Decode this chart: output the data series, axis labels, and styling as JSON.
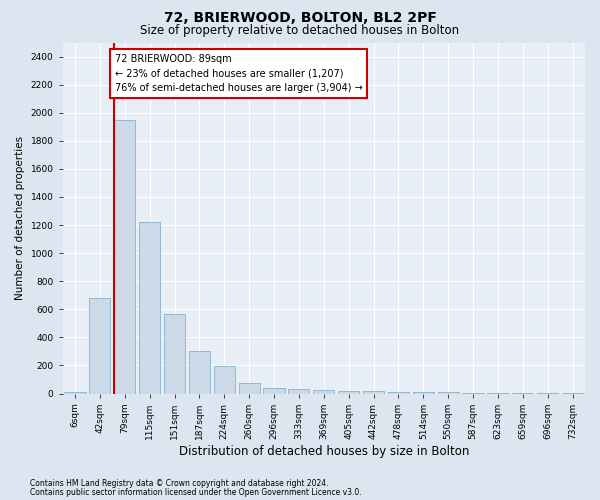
{
  "title": "72, BRIERWOOD, BOLTON, BL2 2PF",
  "subtitle": "Size of property relative to detached houses in Bolton",
  "xlabel": "Distribution of detached houses by size in Bolton",
  "ylabel": "Number of detached properties",
  "footnote1": "Contains HM Land Registry data © Crown copyright and database right 2024.",
  "footnote2": "Contains public sector information licensed under the Open Government Licence v3.0.",
  "bar_labels": [
    "6sqm",
    "42sqm",
    "79sqm",
    "115sqm",
    "151sqm",
    "187sqm",
    "224sqm",
    "260sqm",
    "296sqm",
    "333sqm",
    "369sqm",
    "405sqm",
    "442sqm",
    "478sqm",
    "514sqm",
    "550sqm",
    "587sqm",
    "623sqm",
    "659sqm",
    "696sqm",
    "732sqm"
  ],
  "bar_values": [
    10,
    680,
    1950,
    1220,
    570,
    300,
    195,
    75,
    40,
    30,
    25,
    20,
    15,
    12,
    10,
    8,
    5,
    3,
    2,
    1,
    1
  ],
  "bar_color": "#ccd9e8",
  "bar_edgecolor": "#8ab0cc",
  "highlight_bar_idx": 2,
  "highlight_color": "#cc0000",
  "annotation_text": "72 BRIERWOOD: 89sqm\n← 23% of detached houses are smaller (1,207)\n76% of semi-detached houses are larger (3,904) →",
  "annotation_box_facecolor": "#ffffff",
  "annotation_box_edgecolor": "#cc0000",
  "ylim": [
    0,
    2500
  ],
  "yticks": [
    0,
    200,
    400,
    600,
    800,
    1000,
    1200,
    1400,
    1600,
    1800,
    2000,
    2200,
    2400
  ],
  "fig_bg_color": "#dce6f0",
  "plot_bg_color": "#e8eef5",
  "grid_color": "#ffffff",
  "title_fontsize": 10,
  "subtitle_fontsize": 8.5,
  "ylabel_fontsize": 7.5,
  "xlabel_fontsize": 8.5,
  "tick_fontsize": 6.5,
  "annotation_fontsize": 7,
  "footnote_fontsize": 5.5
}
